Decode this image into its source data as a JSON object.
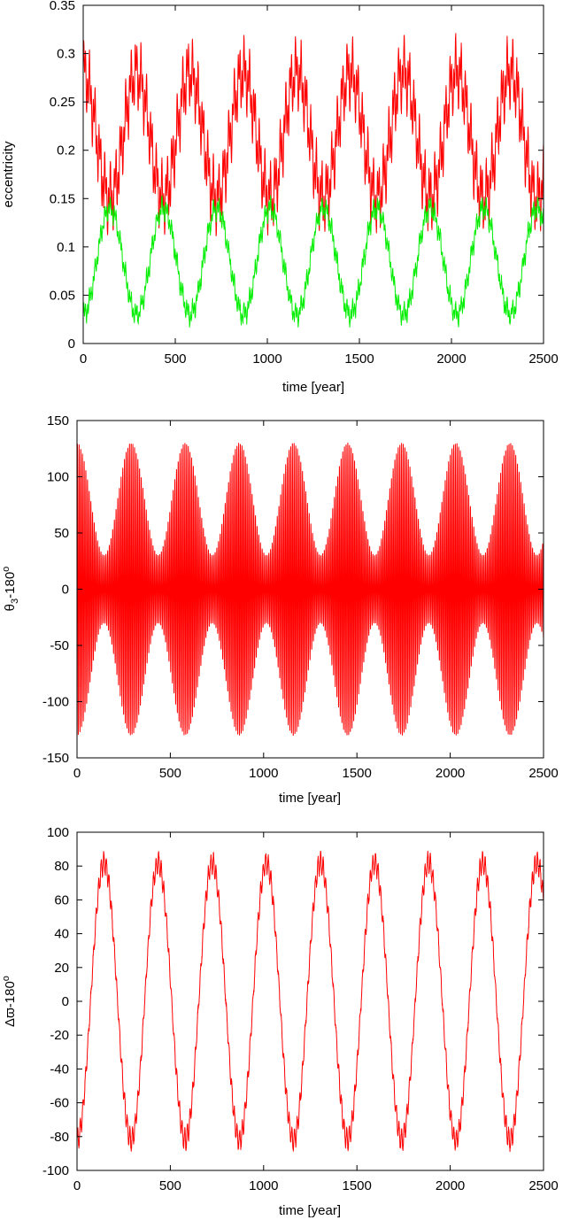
{
  "chart_data": [
    {
      "type": "line",
      "xlabel": "time [year]",
      "ylabel": "eccentricity",
      "xlim": [
        0,
        2500
      ],
      "ylim": [
        0,
        0.35
      ],
      "xticks": [
        0,
        500,
        1000,
        1500,
        2000,
        2500
      ],
      "yticks": [
        0,
        0.05,
        0.1,
        0.15,
        0.2,
        0.25,
        0.3,
        0.35
      ],
      "xtick_labels": [
        "0",
        "500",
        "1000",
        "1500",
        "2000",
        "2500"
      ],
      "ytick_labels": [
        "0",
        "0.05",
        "0.1",
        "0.15",
        "0.2",
        "0.25",
        "0.3",
        "0.35"
      ],
      "grid": false,
      "series": [
        {
          "color": "#ff0000",
          "mean": 0.215,
          "long_amplitude": 0.065,
          "long_period": 290,
          "long_phase_deg": 90,
          "short_amplitude": 0.04,
          "short_period": 28,
          "min": 0.1,
          "max": 0.33
        },
        {
          "color": "#00ee00",
          "mean": 0.085,
          "long_amplitude": 0.055,
          "long_period": 290,
          "long_phase_deg": -90,
          "short_amplitude": 0.012,
          "short_period": 28,
          "min": 0.015,
          "max": 0.158
        }
      ]
    },
    {
      "type": "line",
      "xlabel": "time [year]",
      "ylabel": "θ",
      "ylabel_sub": "3",
      "ylabel_rest": "-180",
      "ylabel_sup": "o",
      "xlim": [
        0,
        2500
      ],
      "ylim": [
        -150,
        150
      ],
      "xticks": [
        0,
        500,
        1000,
        1500,
        2000,
        2500
      ],
      "yticks": [
        -150,
        -100,
        -50,
        0,
        50,
        100,
        150
      ],
      "xtick_labels": [
        "0",
        "500",
        "1000",
        "1500",
        "2000",
        "2500"
      ],
      "ytick_labels": [
        "-150",
        "-100",
        "-50",
        "0",
        "50",
        "100",
        "150"
      ],
      "grid": false,
      "series": [
        {
          "color": "#ff0000",
          "envelope_mean": 80,
          "envelope_amplitude": 50,
          "envelope_period": 290,
          "envelope_phase_deg": 90,
          "osc_period": 9,
          "max": 132,
          "min": -132
        }
      ]
    },
    {
      "type": "line",
      "xlabel": "time [year]",
      "ylabel": "Δϖ-180",
      "ylabel_sup": "o",
      "xlim": [
        0,
        2500
      ],
      "ylim": [
        -100,
        100
      ],
      "xticks": [
        0,
        500,
        1000,
        1500,
        2000,
        2500
      ],
      "yticks": [
        -100,
        -80,
        -60,
        -40,
        -20,
        0,
        20,
        40,
        60,
        80,
        100
      ],
      "xtick_labels": [
        "0",
        "500",
        "1000",
        "1500",
        "2000",
        "2500"
      ],
      "ytick_labels": [
        "-100",
        "-80",
        "-60",
        "-40",
        "-20",
        "0",
        "20",
        "40",
        "60",
        "80",
        "100"
      ],
      "grid": false,
      "series": [
        {
          "color": "#ff0000",
          "amplitude": 82,
          "period": 290,
          "phase_deg": -90,
          "ripple_amplitude": 6,
          "ripple_period": 14,
          "max": 90,
          "min": -90
        }
      ]
    }
  ]
}
